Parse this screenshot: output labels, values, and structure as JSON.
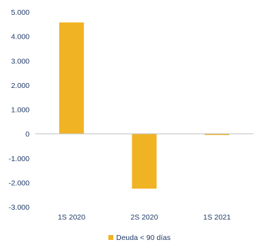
{
  "chart_data": {
    "type": "bar",
    "categories": [
      "1S 2020",
      "2S 2020",
      "1S 2021"
    ],
    "series": [
      {
        "name": "Deuda < 90 días",
        "values": [
          4570,
          -2250,
          -50
        ],
        "color": "#F0B323"
      }
    ],
    "y_ticks": [
      "5.000",
      "4.000",
      "3.000",
      "2.000",
      "1.000",
      "0",
      "-1.000",
      "-2.000",
      "-3.000"
    ],
    "ylim": [
      -3000,
      5000
    ],
    "legend_position": "bottom",
    "grid": false,
    "colors": {
      "bar": "#F0B323",
      "axis_label": "#1F3A68",
      "baseline": "#BFBFBF",
      "legend_text": "#1F3A68"
    }
  }
}
